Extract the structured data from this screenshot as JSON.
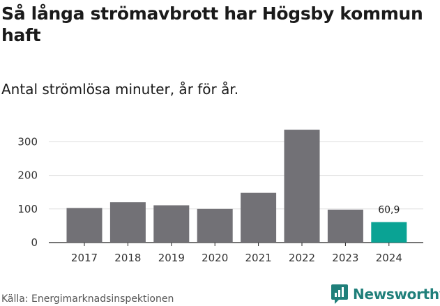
{
  "header": {
    "title": "Så långa strömavbrott har Högsby kommun haft",
    "subtitle": "Antal strömlösa minuter, år för år."
  },
  "footer": {
    "source": "Källa: Energimarknadsinspektionen",
    "brand": "Newsworthy",
    "brand_icon": "newsworthy-logo-icon"
  },
  "colors": {
    "bar": "#727176",
    "highlight": "#0aa394",
    "grid": "#dddddd",
    "brand": "#1f7f7a"
  },
  "chart_data": {
    "type": "bar",
    "title": "Så långa strömavbrott har Högsby kommun haft",
    "subtitle": "Antal strömlösa minuter, år för år.",
    "categories": [
      "2017",
      "2018",
      "2019",
      "2020",
      "2021",
      "2022",
      "2023",
      "2024"
    ],
    "values": [
      103,
      120,
      111,
      100,
      148,
      336,
      98,
      60.9
    ],
    "highlight_index": 7,
    "data_labels": [
      {
        "index": 7,
        "text": "60,9"
      }
    ],
    "yticks": [
      0,
      100,
      200,
      300
    ],
    "ylim": [
      0,
      350
    ],
    "grid": true,
    "legend": "none",
    "xlabel": "",
    "ylabel": ""
  }
}
